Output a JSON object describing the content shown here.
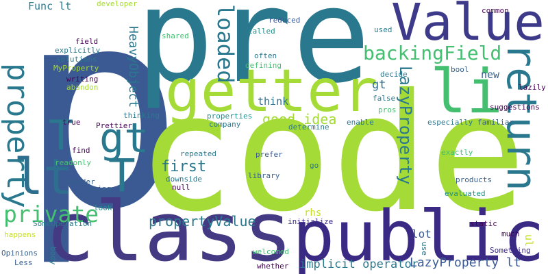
{
  "title": "Word cloud",
  "palette": {
    "dark_purple": "#440154",
    "indigo": "#3b2a84",
    "slate_blue": "#355f8d",
    "blue": "#39568c",
    "teal_blue": "#2a788e",
    "teal": "#21918c",
    "sea_green": "#22a884",
    "green": "#44bf70",
    "lime": "#7ad151",
    "yellow_green": "#a5db36",
    "yellow": "#c8e020"
  },
  "words": [
    {
      "text": "p",
      "color": "#3b5a94"
    },
    {
      "text": "pre",
      "color": "#2a788e"
    },
    {
      "text": "code",
      "color": "#a5db36"
    },
    {
      "text": "class",
      "color": "#443983"
    },
    {
      "text": "public",
      "color": "#3b2a84"
    },
    {
      "text": "Value",
      "color": "#3e3a8a"
    },
    {
      "text": "getter",
      "color": "#a5db36"
    },
    {
      "text": "li",
      "color": "#44bf70"
    },
    {
      "text": "return",
      "color": "#2a788e"
    },
    {
      "text": "property",
      "color": "#2a788e"
    },
    {
      "text": "backingField",
      "color": "#44bf70"
    },
    {
      "text": "gt",
      "color": "#2a788e"
    },
    {
      "text": "T",
      "color": "#2a788e"
    },
    {
      "text": "T",
      "color": "#2a788e"
    },
    {
      "text": "lt",
      "color": "#2e6e8e"
    },
    {
      "text": "private",
      "color": "#44bf70"
    },
    {
      "text": "loaded",
      "color": "#2a788e"
    },
    {
      "text": "HeavyObject",
      "color": "#2a788e"
    },
    {
      "text": "LazyProperty",
      "color": "#2a788e"
    },
    {
      "text": "propertyValue",
      "color": "#2a788e"
    },
    {
      "text": "first",
      "color": "#2a788e"
    },
    {
      "text": "good idea",
      "color": "#a5db36"
    },
    {
      "text": "think",
      "color": "#2d708e"
    },
    {
      "text": "gt",
      "color": "#2d708e"
    },
    {
      "text": "implicit operator",
      "color": "#2a788e"
    },
    {
      "text": "LazyProperty lt",
      "color": "#3b5a94"
    },
    {
      "text": "lot",
      "color": "#3b5a94"
    },
    {
      "text": "new",
      "color": "#355f8d"
    },
    {
      "text": "Func lt",
      "color": "#2a788e"
    },
    {
      "text": "developer",
      "color": "#a5db36"
    },
    {
      "text": "common",
      "color": "#440154"
    },
    {
      "text": "shared",
      "color": "#44bf70"
    },
    {
      "text": "called",
      "color": "#21918c"
    },
    {
      "text": "reduced",
      "color": "#3b5a94"
    },
    {
      "text": "used",
      "color": "#2a788e"
    },
    {
      "text": "field",
      "color": "#440154"
    },
    {
      "text": "explicitly",
      "color": "#2a788e"
    },
    {
      "text": "solutions",
      "color": "#2a788e"
    },
    {
      "text": "MyProperty",
      "color": "#a5db36"
    },
    {
      "text": "often",
      "color": "#2a788e"
    },
    {
      "text": "defining",
      "color": "#44bf70"
    },
    {
      "text": "decide",
      "color": "#2a788e"
    },
    {
      "text": "bool",
      "color": "#355f8d"
    },
    {
      "text": "lazily",
      "color": "#440154"
    },
    {
      "text": "writing",
      "color": "#440154"
    },
    {
      "text": "abandon",
      "color": "#a5db36"
    },
    {
      "text": "false",
      "color": "#2a788e"
    },
    {
      "text": "pros",
      "color": "#44bf70"
    },
    {
      "text": "suggestions",
      "color": "#440154"
    },
    {
      "text": "thinking",
      "color": "#2a788e"
    },
    {
      "text": "properties",
      "color": "#21918c"
    },
    {
      "text": "company",
      "color": "#2a788e"
    },
    {
      "text": "enable",
      "color": "#2a788e"
    },
    {
      "text": "especially",
      "color": "#2a788e"
    },
    {
      "text": "familiar",
      "color": "#355f8d"
    },
    {
      "text": "true",
      "color": "#440154"
    },
    {
      "text": "Prettier",
      "color": "#440154"
    },
    {
      "text": "determine",
      "color": "#2a788e"
    },
    {
      "text": "find",
      "color": "#440154"
    },
    {
      "text": "readonly",
      "color": "#44bf70"
    },
    {
      "text": "repeated",
      "color": "#2a788e"
    },
    {
      "text": "prefer",
      "color": "#3b5a94"
    },
    {
      "text": "exactly",
      "color": "#44bf70"
    },
    {
      "text": "go",
      "color": "#2a788e"
    },
    {
      "text": "library",
      "color": "#355f8d"
    },
    {
      "text": "harder",
      "color": "#355f8d"
    },
    {
      "text": "downside",
      "color": "#2a788e"
    },
    {
      "text": "null",
      "color": "#440154"
    },
    {
      "text": "products",
      "color": "#355f8d"
    },
    {
      "text": "using",
      "color": "#355f8d"
    },
    {
      "text": "evaluated",
      "color": "#21918c"
    },
    {
      "text": "look",
      "color": "#21918c"
    },
    {
      "text": "rhs",
      "color": "#c8e020"
    },
    {
      "text": "SomeOperation",
      "color": "#2a788e"
    },
    {
      "text": "initialize",
      "color": "#3b2a84"
    },
    {
      "text": "Something",
      "color": "#3b2a84"
    },
    {
      "text": "static",
      "color": "#440154"
    },
    {
      "text": "much",
      "color": "#440154"
    },
    {
      "text": "ul",
      "color": "#c8e020"
    },
    {
      "text": "happens",
      "color": "#c8e020"
    },
    {
      "text": "Opinions",
      "color": "#355f8d"
    },
    {
      "text": "body",
      "color": "#2a788e"
    },
    {
      "text": "use",
      "color": "#2a788e"
    },
    {
      "text": "welcomed",
      "color": "#44bf70"
    },
    {
      "text": "Less",
      "color": "#355f8d"
    },
    {
      "text": "whether",
      "color": "#440154"
    }
  ]
}
